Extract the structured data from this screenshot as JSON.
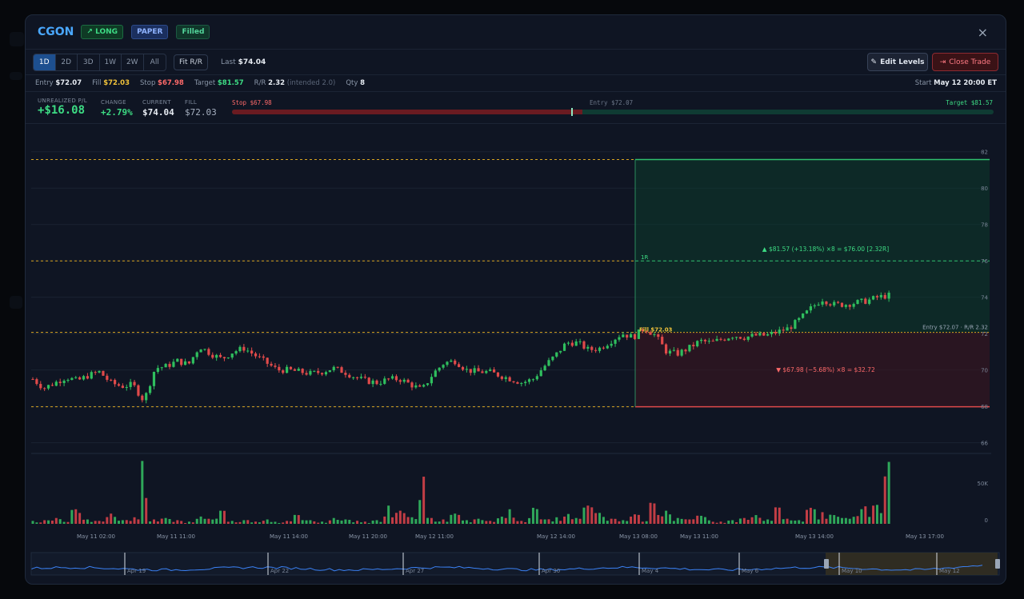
{
  "header": {
    "ticker": "CGON",
    "badges": {
      "direction": "LONG",
      "mode": "PAPER",
      "status": "Filled"
    },
    "close_icon": "×"
  },
  "toolbar": {
    "timeframes": [
      "1D",
      "2D",
      "3D",
      "1W",
      "2W",
      "All"
    ],
    "active_timeframe": "1D",
    "fit_rr_label": "Fit R/R",
    "last_label": "Last",
    "last_value": "$74.04",
    "edit_levels_label": "Edit Levels",
    "close_trade_label": "Close Trade"
  },
  "trade_info": {
    "entry_label": "Entry",
    "entry_value": "$72.07",
    "fill_label": "Fill",
    "fill_value": "$72.03",
    "stop_label": "Stop",
    "stop_value": "$67.98",
    "target_label": "Target",
    "target_value": "$81.57",
    "rr_label": "R/R",
    "rr_value": "2.32",
    "rr_intended": "(intended 2.0)",
    "qty_label": "Qty",
    "qty_value": "8",
    "start_label": "Start",
    "start_value": "May 12 20:00 ET"
  },
  "stats": {
    "unrealized_label": "UNREALIZED P/L",
    "unrealized_value": "+$16.08",
    "change_label": "CHANGE",
    "change_value": "+2.79%",
    "current_label": "CURRENT",
    "current_value": "$74.04",
    "fill_label": "FILL",
    "fill_value": "$72.03"
  },
  "range_bar": {
    "stop_label": "Stop $67.98",
    "entry_label": "Entry $72.07",
    "target_label": "Target $81.57",
    "progress_fraction": 0.46
  },
  "chart_data": {
    "type": "candlestick",
    "price_axis_ticks": [
      "82",
      "80",
      "78",
      "76",
      "74",
      "72",
      "70",
      "68",
      "66"
    ],
    "volume_axis_ticks": [
      "50K",
      "0"
    ],
    "x_tick_labels": [
      "May 11 02:00",
      "May 11 11:00",
      "May 11 14:00",
      "May 11 20:00",
      "May 12 11:00",
      "May 12 14:00",
      "May 13 08:00",
      "May 13 11:00",
      "May 13 14:00",
      "May 13 17:00"
    ],
    "levels": {
      "target": 81.57,
      "one_r": 76.0,
      "entry": 72.07,
      "fill": 72.03,
      "stop": 67.98
    },
    "annotations": {
      "target": "▲ $81.57 (+13.18%) ×8 = $76.00 [2.32R]",
      "stop": "▼ $67.98 (−5.68%) ×8 = $32.72",
      "fill": "Fill $72.03",
      "one_r": "1R",
      "entry": "Entry $72.07 · R/R 2.32"
    },
    "ylim": [
      65.5,
      83.0
    ],
    "close_path": [
      69.5,
      69.0,
      69.3,
      69.6,
      69.4,
      69.7,
      69.9,
      69.3,
      69.1,
      69.2,
      68.3,
      70.1,
      70.2,
      70.5,
      70.3,
      71.3,
      70.9,
      70.6,
      71.0,
      71.2,
      70.8,
      70.4,
      70.0,
      70.0,
      69.9,
      69.8,
      69.9,
      70.1,
      69.9,
      69.6,
      69.4,
      69.3,
      69.5,
      69.5,
      69.2,
      68.9,
      69.8,
      70.4,
      70.5,
      70.0,
      69.9,
      69.9,
      69.7,
      69.5,
      69.3,
      69.5,
      70.2,
      70.8,
      71.5,
      71.5,
      71.1,
      71.2,
      71.6,
      72.0,
      71.8,
      72.3,
      71.9,
      71.0,
      70.9,
      71.2,
      71.6,
      71.5,
      71.7,
      71.9,
      71.8,
      71.9,
      71.9,
      72.1,
      72.3,
      72.8,
      73.4,
      73.9,
      73.6,
      73.6,
      73.7,
      73.8,
      74.0,
      74.1
    ],
    "volume_path": [
      4,
      5,
      8,
      3,
      20,
      6,
      4,
      14,
      5,
      9,
      85,
      6,
      8,
      5,
      3,
      10,
      7,
      18,
      4,
      5,
      3,
      6,
      3,
      4,
      12,
      5,
      3,
      8,
      6,
      4,
      3,
      5,
      25,
      18,
      9,
      62,
      8,
      6,
      14,
      5,
      7,
      4,
      10,
      20,
      4,
      22,
      6,
      9,
      14,
      8,
      25,
      15,
      7,
      5,
      13,
      8,
      28,
      18,
      8,
      6,
      11,
      7,
      3,
      5,
      8,
      12,
      6,
      25,
      7,
      5,
      22,
      16,
      12,
      8,
      20,
      24,
      26,
      85
    ]
  },
  "navigator": {
    "date_labels": [
      "Apr 19",
      "Apr 22",
      "Apr 27",
      "Apr 30",
      "May 4",
      "May 6",
      "May 10",
      "May 12"
    ]
  }
}
